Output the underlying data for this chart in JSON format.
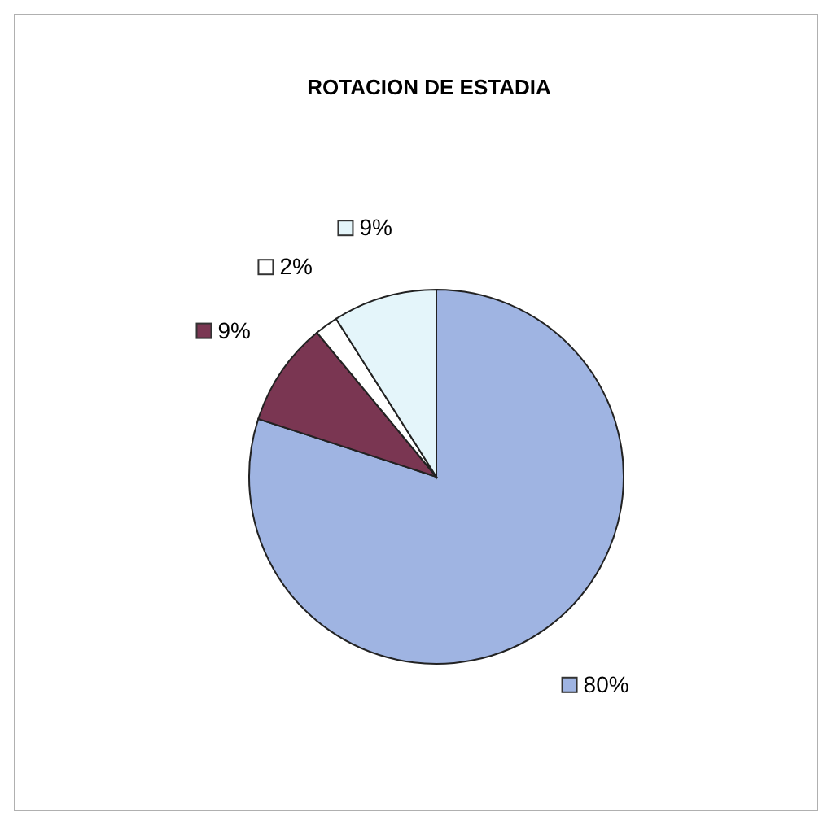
{
  "chart_data": {
    "type": "pie",
    "title": "ROTACION DE ESTADIA",
    "categories": [
      null,
      null,
      null,
      null
    ],
    "values": [
      80,
      9,
      2,
      9
    ],
    "colors": [
      "#9fb4e2",
      "#7a3652",
      "#ffffff",
      "#e4f5fa"
    ],
    "value_labels": [
      "80%",
      "9%",
      "2%",
      "9%"
    ]
  }
}
